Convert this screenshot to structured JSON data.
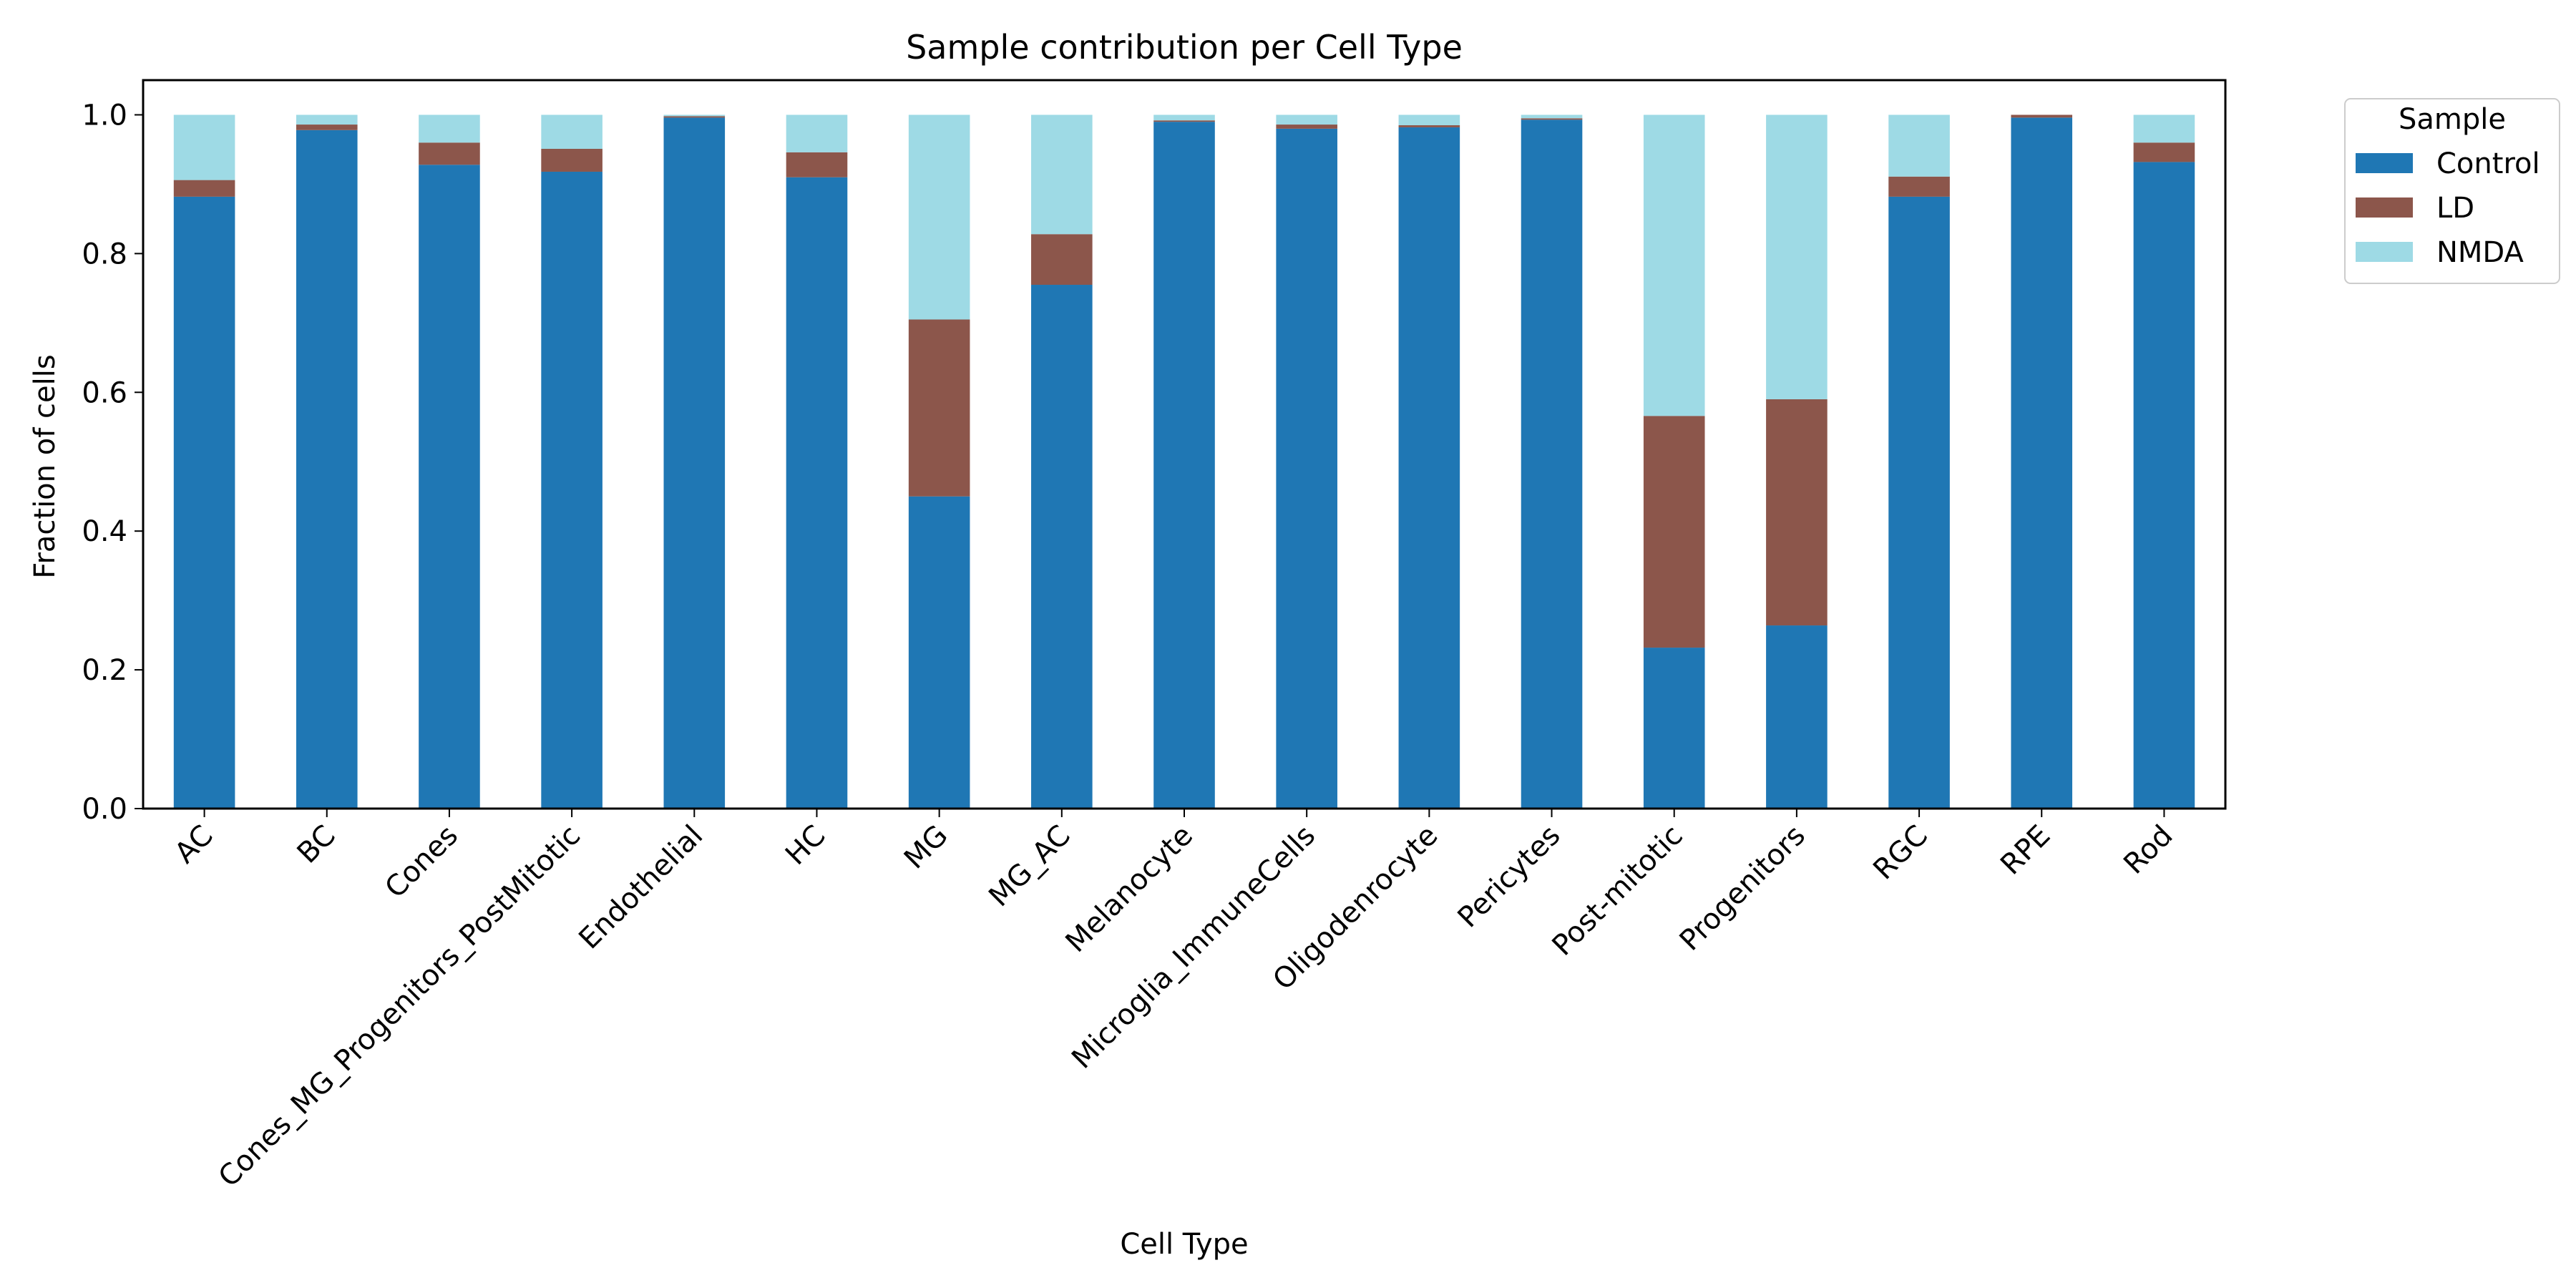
{
  "chart_data": {
    "type": "bar",
    "stacked": true,
    "title": "Sample contribution per Cell Type",
    "xlabel": "Cell Type",
    "ylabel": "Fraction of cells",
    "ylim": [
      0,
      1.05
    ],
    "yticks": [
      "0.0",
      "0.2",
      "0.4",
      "0.6",
      "0.8",
      "1.0"
    ],
    "grid": false,
    "legend": {
      "title": "Sample",
      "placement": "outside-top-right"
    },
    "categories": [
      "AC",
      "BC",
      "Cones",
      "Cones_MG_Progenitors_PostMitotic",
      "Endothelial",
      "HC",
      "MG",
      "MG_AC",
      "Melanocyte",
      "Microglia_ImmuneCells",
      "Oligodenrocyte",
      "Pericytes",
      "Post-mitotic",
      "Progenitors",
      "RGC",
      "RPE",
      "Rod"
    ],
    "series": [
      {
        "name": "Control",
        "color": "#1f77b4",
        "values": [
          0.882,
          0.978,
          0.928,
          0.918,
          0.996,
          0.91,
          0.45,
          0.755,
          0.99,
          0.98,
          0.982,
          0.993,
          0.232,
          0.264,
          0.882,
          0.996,
          0.932
        ]
      },
      {
        "name": "LD",
        "color": "#8c564b",
        "values": [
          0.024,
          0.008,
          0.032,
          0.033,
          0.002,
          0.036,
          0.255,
          0.073,
          0.002,
          0.006,
          0.003,
          0.002,
          0.334,
          0.326,
          0.029,
          0.004,
          0.028
        ]
      },
      {
        "name": "NMDA",
        "color": "#9edae5",
        "values": [
          0.094,
          0.014,
          0.04,
          0.049,
          0.002,
          0.054,
          0.295,
          0.172,
          0.008,
          0.014,
          0.015,
          0.005,
          0.434,
          0.41,
          0.089,
          0.0,
          0.04
        ]
      }
    ]
  }
}
